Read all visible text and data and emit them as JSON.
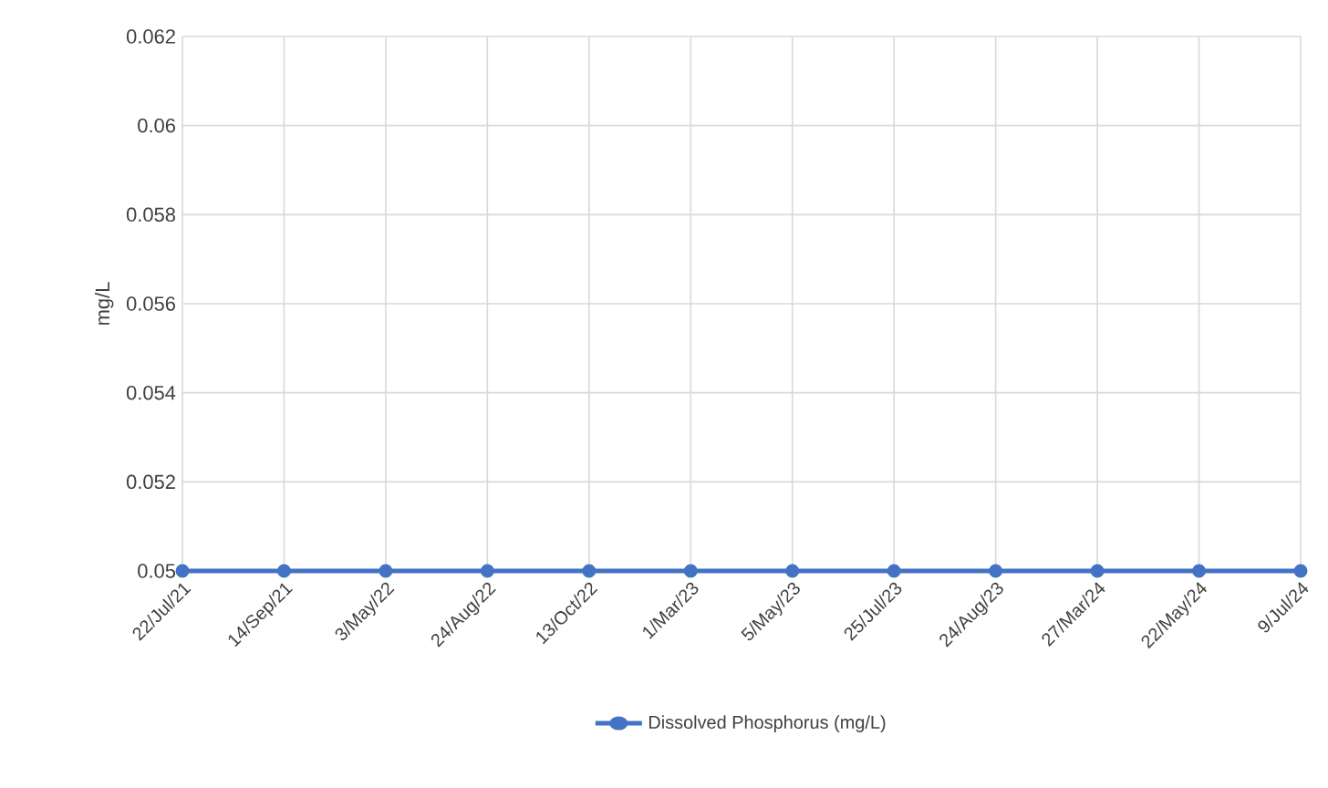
{
  "chart_data": {
    "type": "line",
    "ylabel": "mg/L",
    "categories": [
      "22/Jul/21",
      "14/Sep/21",
      "3/May/22",
      "24/Aug/22",
      "13/Oct/22",
      "1/Mar/23",
      "5/May/23",
      "25/Jul/23",
      "24/Aug/23",
      "27/Mar/24",
      "22/May/24",
      "9/Jul/24"
    ],
    "series": [
      {
        "name": "Dissolved Phosphorus (mg/L)",
        "color": "#4472c4",
        "values": [
          0.05,
          0.05,
          0.05,
          0.05,
          0.05,
          0.05,
          0.05,
          0.05,
          0.05,
          0.05,
          0.05,
          0.05
        ]
      }
    ],
    "ylim": [
      0.05,
      0.062
    ],
    "yticks": [
      0.05,
      0.052,
      0.054,
      0.056,
      0.058,
      0.06,
      0.062
    ],
    "grid": true,
    "legend": "bottom",
    "marker": "circle",
    "line_style": "solid"
  }
}
